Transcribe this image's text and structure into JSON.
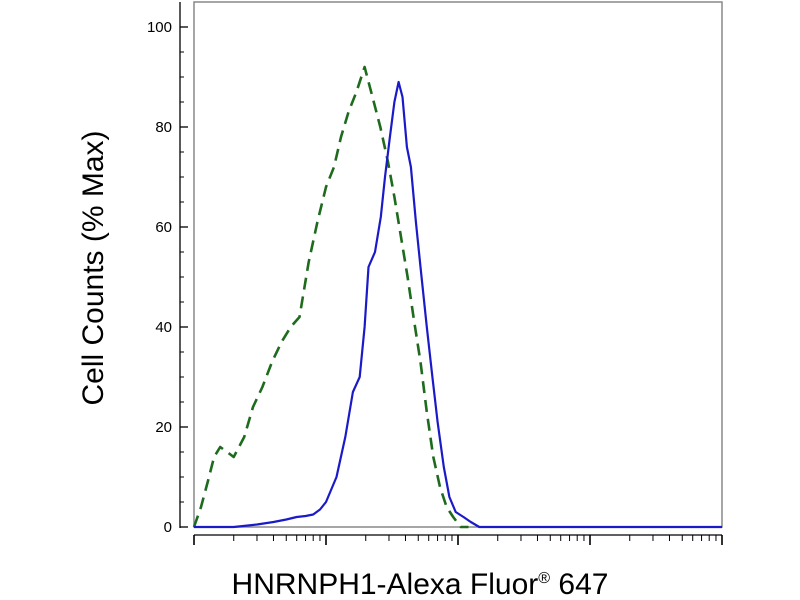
{
  "chart_data": {
    "type": "line",
    "title": "",
    "xlabel": "HNRNPH1-Alexa Fluor",
    "xlabel_mark": "®",
    "xlabel_suffix": " 647",
    "ylabel": "Cell Counts (% Max)",
    "xscale": "log",
    "xlim": [
      1,
      10000
    ],
    "x_major_ticks": [
      1,
      10,
      100,
      1000
    ],
    "ylim": [
      0,
      105
    ],
    "yticks": [
      0,
      20,
      40,
      60,
      80,
      100
    ],
    "ytick_labels": [
      "0",
      "20",
      "40",
      "60",
      "80",
      "100"
    ],
    "grid": false,
    "legend": "none",
    "colors": {
      "control": "#1e6b1e",
      "stained": "#1a1ac8"
    },
    "series": [
      {
        "style": "dashed",
        "color": "#1e6b1e",
        "x": [
          1.0,
          1.13,
          1.27,
          1.42,
          1.58,
          1.78,
          2.0,
          2.4,
          2.8,
          3.3,
          3.9,
          4.6,
          5.4,
          6.3,
          7.4,
          8.6,
          10.0,
          11.5,
          13.0,
          14.8,
          17.0,
          19.6,
          22.5,
          25.8,
          29.5,
          33.0,
          37.0,
          41.5,
          46.0,
          52.0,
          58.0,
          65.0,
          73.0,
          82.0,
          92.0,
          105.0,
          120.0
        ],
        "y": [
          0,
          4,
          9,
          14,
          16,
          15,
          14,
          18,
          24,
          28,
          33,
          37,
          40,
          42,
          53,
          61,
          68,
          72,
          78,
          83,
          87,
          92,
          86,
          80,
          73,
          66,
          58,
          50,
          42,
          33,
          23,
          14,
          8,
          4,
          2,
          0,
          0
        ]
      },
      {
        "style": "solid",
        "color": "#1a1ac8",
        "x": [
          1.0,
          1.5,
          2.0,
          3.0,
          4.0,
          5.0,
          6.0,
          7.0,
          8.0,
          9.0,
          10.0,
          12.0,
          14.0,
          16.0,
          18.0,
          19.6,
          21.0,
          23.5,
          26.0,
          28.0,
          30.5,
          33.0,
          35.5,
          38.0,
          41.0,
          44.0,
          48.0,
          52.0,
          58.0,
          64.0,
          70.0,
          78.0,
          86.0,
          96.0,
          110.0,
          125.0,
          145.0,
          200.0,
          500.0,
          2000.0,
          10000.0
        ],
        "y": [
          0,
          0,
          0,
          0.5,
          1,
          1.5,
          2,
          2.2,
          2.5,
          3.5,
          5,
          10,
          18,
          27,
          30,
          40,
          52,
          55,
          62,
          70,
          78,
          85,
          89,
          86,
          76,
          72,
          61,
          52,
          40,
          30,
          21,
          12,
          6,
          3,
          2,
          1,
          0,
          0,
          0,
          0,
          0
        ]
      }
    ]
  }
}
